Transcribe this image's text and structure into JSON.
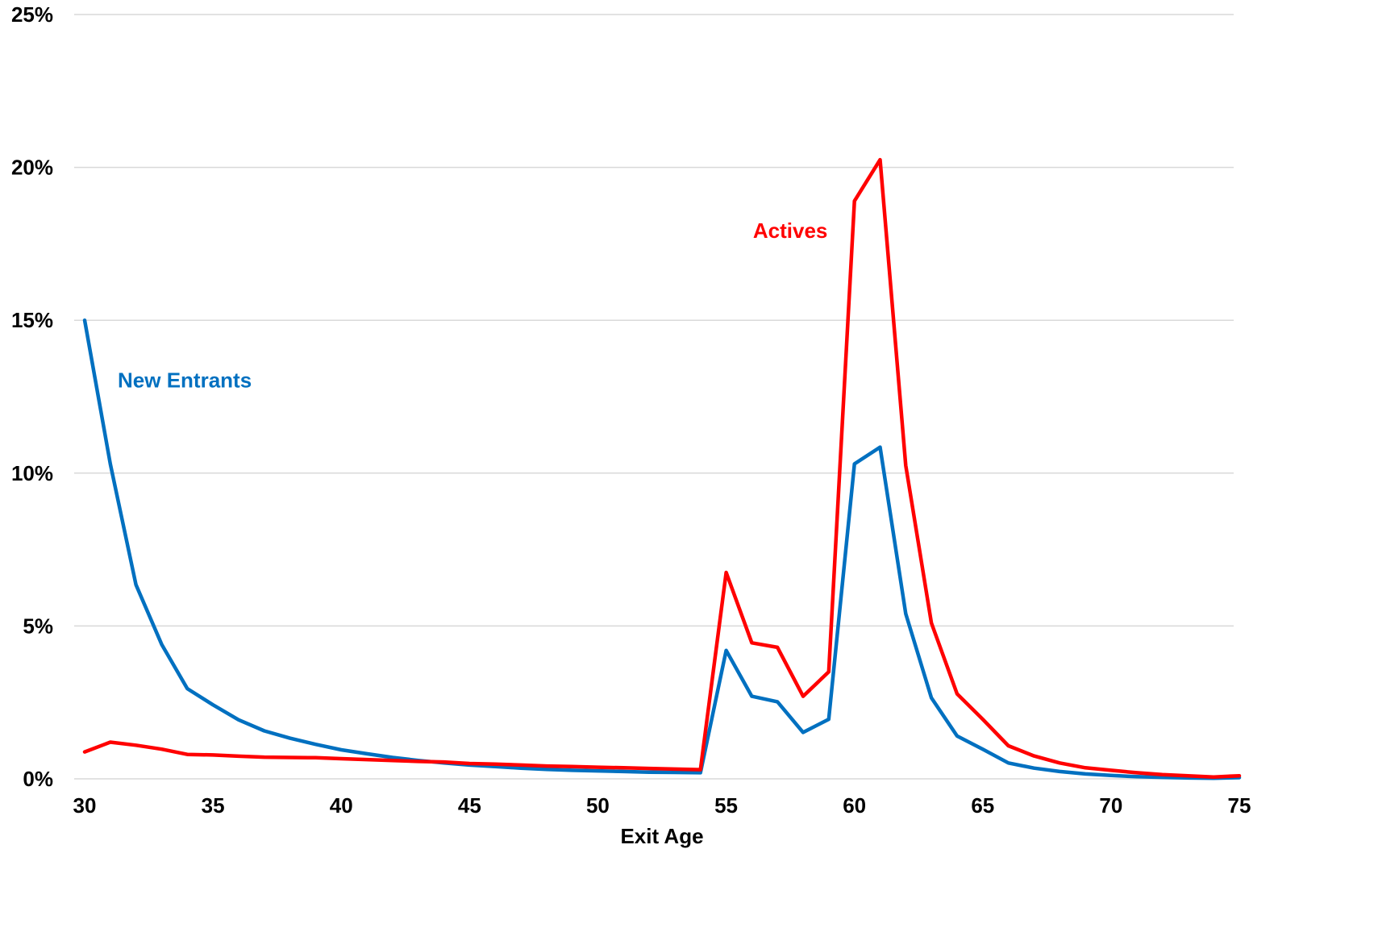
{
  "chart_data": {
    "type": "line",
    "title": "",
    "xlabel": "Exit Age",
    "ylabel": "",
    "xlim": [
      30,
      75
    ],
    "ylim": [
      0,
      25
    ],
    "x_ticks": [
      30,
      35,
      40,
      45,
      50,
      55,
      60,
      65,
      70,
      75
    ],
    "x_tick_labels": [
      "30",
      "35",
      "40",
      "45",
      "50",
      "55",
      "60",
      "65",
      "70",
      "75"
    ],
    "y_ticks": [
      0,
      5,
      10,
      15,
      20,
      25
    ],
    "y_tick_labels": [
      "0%",
      "5%",
      "10%",
      "15%",
      "20%",
      "25%"
    ],
    "grid": "horizontal",
    "legend": "none",
    "x": [
      30,
      31,
      32,
      33,
      34,
      35,
      36,
      37,
      38,
      39,
      40,
      41,
      42,
      43,
      44,
      45,
      46,
      47,
      48,
      49,
      50,
      51,
      52,
      53,
      54,
      55,
      56,
      57,
      58,
      59,
      60,
      61,
      62,
      63,
      64,
      65,
      66,
      67,
      68,
      69,
      70,
      71,
      72,
      73,
      74,
      75
    ],
    "series": [
      {
        "name": "New Entrants",
        "color": "#0070C0",
        "values": [
          15.0,
          10.3,
          6.35,
          4.4,
          2.95,
          2.42,
          1.93,
          1.57,
          1.33,
          1.13,
          0.95,
          0.82,
          0.7,
          0.6,
          0.52,
          0.45,
          0.4,
          0.35,
          0.31,
          0.28,
          0.26,
          0.24,
          0.22,
          0.21,
          0.2,
          4.2,
          2.7,
          2.52,
          1.52,
          1.95,
          10.3,
          10.85,
          5.4,
          2.65,
          1.4,
          0.97,
          0.52,
          0.35,
          0.24,
          0.16,
          0.11,
          0.07,
          0.05,
          0.03,
          0.02,
          0.04
        ]
      },
      {
        "name": "Actives",
        "color": "#FF0000",
        "values": [
          0.88,
          1.2,
          1.1,
          0.97,
          0.8,
          0.78,
          0.74,
          0.71,
          0.7,
          0.69,
          0.66,
          0.63,
          0.6,
          0.57,
          0.55,
          0.5,
          0.48,
          0.45,
          0.42,
          0.4,
          0.38,
          0.36,
          0.34,
          0.32,
          0.3,
          6.75,
          4.45,
          4.3,
          2.7,
          3.5,
          18.9,
          20.25,
          10.25,
          5.1,
          2.78,
          1.95,
          1.08,
          0.75,
          0.52,
          0.36,
          0.28,
          0.2,
          0.14,
          0.1,
          0.06,
          0.1
        ]
      }
    ],
    "annotations": [
      {
        "text": "New Entrants",
        "color": "#0070C0",
        "x": 33.9,
        "y": 12.8
      },
      {
        "text": "Actives",
        "color": "#FF0000",
        "x": 57.5,
        "y": 17.7
      }
    ]
  }
}
